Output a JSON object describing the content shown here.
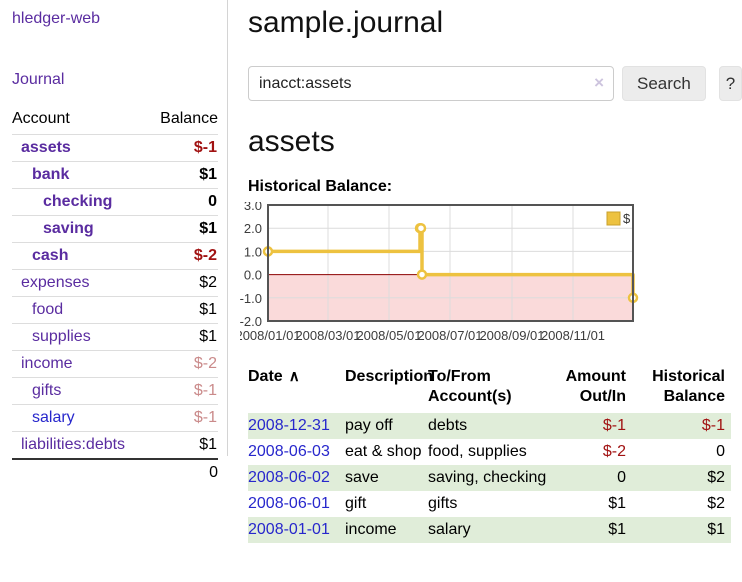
{
  "app": {
    "title": "hledger-web"
  },
  "nav": {
    "journal_label": "Journal"
  },
  "colors": {
    "link_purple": "#5a2ca0",
    "link_blue": "#2727cc",
    "negative_strong": "#a11212",
    "negative_soft": "#ca8a8a",
    "row_stripe_green": "#e0edd9",
    "chart_line_gold": "#edc240",
    "chart_negative_region_pink": "#fadada",
    "chart_zero_line_red": "#8b0000"
  },
  "sidebar": {
    "accounts_table": {
      "headers": {
        "account": "Account",
        "balance": "Balance"
      },
      "rows": [
        {
          "name": "assets",
          "depth": 1,
          "bold": true,
          "balance": "$-1",
          "balance_class": "neg"
        },
        {
          "name": "bank",
          "depth": 2,
          "bold": true,
          "balance": "$1",
          "balance_class": "pos"
        },
        {
          "name": "checking",
          "depth": 3,
          "bold": true,
          "balance": "0",
          "balance_class": "pos"
        },
        {
          "name": "saving",
          "depth": 3,
          "bold": true,
          "balance": "$1",
          "balance_class": "pos"
        },
        {
          "name": "cash",
          "depth": 2,
          "bold": true,
          "balance": "$-2",
          "balance_class": "neg"
        },
        {
          "name": "expenses",
          "depth": 1,
          "bold": false,
          "balance": "$2",
          "balance_class": "pos"
        },
        {
          "name": "food",
          "depth": 2,
          "bold": false,
          "balance": "$1",
          "balance_class": "pos"
        },
        {
          "name": "supplies",
          "depth": 2,
          "bold": false,
          "balance": "$1",
          "balance_class": "pos"
        },
        {
          "name": "income",
          "depth": 1,
          "bold": false,
          "balance": "$-2",
          "balance_class": "neg-soft"
        },
        {
          "name": "gifts",
          "depth": 2,
          "bold": false,
          "balance": "$-1",
          "balance_class": "neg-soft"
        },
        {
          "name": "salary",
          "depth": 2,
          "bold": false,
          "balance": "$-1",
          "balance_class": "neg-soft",
          "link": "blue"
        },
        {
          "name": "liabilities:debts",
          "depth": 1,
          "bold": false,
          "balance": "$1",
          "balance_class": "pos"
        }
      ],
      "total": "0"
    }
  },
  "header": {
    "title": "sample.journal"
  },
  "search": {
    "query": "inacct:assets",
    "clear_icon": "×",
    "button_label": "Search",
    "help_label": "?"
  },
  "main": {
    "account_heading": "assets",
    "chart_title": "Historical Balance:"
  },
  "chart_data": {
    "type": "line",
    "subtype": "step-after",
    "title": "Historical Balance",
    "xrange": [
      "2008-01-01",
      "2008-12-31"
    ],
    "ylim": [
      -2.0,
      3.0
    ],
    "yticks": [
      "3.0",
      "2.0",
      "1.0",
      "0.0",
      "-1.0",
      "-2.0"
    ],
    "xticks": [
      {
        "label": "2008/01/01",
        "date": "2008-01-01"
      },
      {
        "label": "2008/03/01",
        "date": "2008-03-01"
      },
      {
        "label": "2008/05/01",
        "date": "2008-05-01"
      },
      {
        "label": "2008/07/01",
        "date": "2008-07-01"
      },
      {
        "label": "2008/09/01",
        "date": "2008-09-01"
      },
      {
        "label": "2008/11/01",
        "date": "2008-11-01"
      }
    ],
    "series": [
      {
        "name": "$",
        "color": "#edc240",
        "points": [
          [
            "2008-01-01",
            1.0
          ],
          [
            "2008-06-01",
            2.0
          ],
          [
            "2008-06-02",
            2.0
          ],
          [
            "2008-06-03",
            0.0
          ],
          [
            "2008-12-31",
            -1.0
          ]
        ]
      }
    ],
    "legend": {
      "label": "$",
      "position": "top-right"
    },
    "grid": true,
    "negative_region_color": "#fadada",
    "zero_line_color": "#8b0000",
    "grid_color": "#dcdcdc",
    "border_color": "#545454"
  },
  "register": {
    "headers": {
      "date": "Date",
      "description": "Description",
      "accounts": "To/From Account(s)",
      "amount": "Amount Out/In",
      "balance": "Historical Balance"
    },
    "sort_icon": "∧",
    "rows": [
      {
        "date": "2008-12-31",
        "description": "pay off",
        "accounts": "debts",
        "amount": "$-1",
        "amount_negative": true,
        "balance": "$-1",
        "balance_negative": true
      },
      {
        "date": "2008-06-03",
        "description": "eat & shop",
        "accounts": "food, supplies",
        "amount": "$-2",
        "amount_negative": true,
        "balance": "0",
        "balance_negative": false
      },
      {
        "date": "2008-06-02",
        "description": "save",
        "accounts": "saving, checking",
        "amount": "0",
        "amount_negative": false,
        "balance": "$2",
        "balance_negative": false
      },
      {
        "date": "2008-06-01",
        "description": "gift",
        "accounts": "gifts",
        "amount": "$1",
        "amount_negative": false,
        "balance": "$2",
        "balance_negative": false
      },
      {
        "date": "2008-01-01",
        "description": "income",
        "accounts": "salary",
        "amount": "$1",
        "amount_negative": false,
        "balance": "$1",
        "balance_negative": false
      }
    ]
  }
}
